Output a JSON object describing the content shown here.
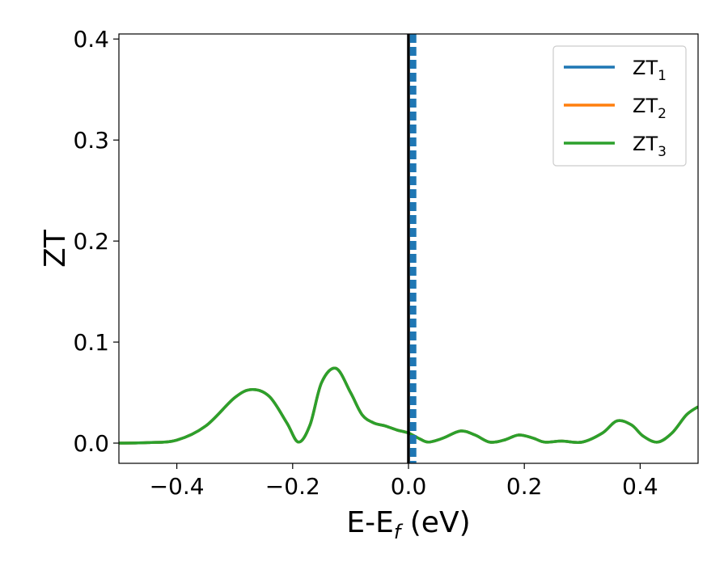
{
  "chart_data": {
    "type": "line",
    "xlabel": "E-E",
    "xlabel_sub": "f",
    "xlabel_unit": " (eV)",
    "ylabel": "ZT",
    "xlim": [
      -0.5,
      0.5
    ],
    "ylim": [
      -0.02,
      0.405
    ],
    "x_ticks": [
      -0.4,
      -0.2,
      0.0,
      0.2,
      0.4
    ],
    "x_tick_labels": [
      "−0.4",
      "−0.2",
      "0.0",
      "0.2",
      "0.4"
    ],
    "y_ticks": [
      0.0,
      0.1,
      0.2,
      0.3,
      0.4
    ],
    "y_tick_labels": [
      "0.0",
      "0.1",
      "0.2",
      "0.3",
      "0.4"
    ],
    "grid": false,
    "legend_position": "top-right",
    "series": [
      {
        "name": "ZT",
        "name_sub": "1",
        "color": "#1f77b4",
        "x": [
          -0.5,
          -0.45,
          -0.4,
          -0.35,
          -0.3,
          -0.27,
          -0.24,
          -0.21,
          -0.19,
          -0.17,
          -0.15,
          -0.125,
          -0.1,
          -0.08,
          -0.06,
          -0.04,
          -0.02,
          0.0,
          0.02,
          0.035,
          0.06,
          0.09,
          0.115,
          0.14,
          0.165,
          0.19,
          0.215,
          0.235,
          0.265,
          0.3,
          0.335,
          0.36,
          0.385,
          0.405,
          0.43,
          0.455,
          0.48,
          0.5
        ],
        "y": [
          0.0,
          0.0005,
          0.003,
          0.017,
          0.045,
          0.053,
          0.046,
          0.02,
          0.001,
          0.018,
          0.06,
          0.074,
          0.05,
          0.028,
          0.02,
          0.017,
          0.013,
          0.01,
          0.004,
          0.001,
          0.005,
          0.012,
          0.008,
          0.001,
          0.003,
          0.008,
          0.005,
          0.001,
          0.002,
          0.001,
          0.01,
          0.022,
          0.018,
          0.007,
          0.001,
          0.01,
          0.028,
          0.036
        ]
      },
      {
        "name": "ZT",
        "name_sub": "2",
        "color": "#ff7f0e",
        "x": [
          -0.5,
          -0.45,
          -0.4,
          -0.35,
          -0.3,
          -0.27,
          -0.24,
          -0.21,
          -0.19,
          -0.17,
          -0.15,
          -0.125,
          -0.1,
          -0.08,
          -0.06,
          -0.04,
          -0.02,
          0.0,
          0.02,
          0.035,
          0.06,
          0.09,
          0.115,
          0.14,
          0.165,
          0.19,
          0.215,
          0.235,
          0.265,
          0.3,
          0.335,
          0.36,
          0.385,
          0.405,
          0.43,
          0.455,
          0.48,
          0.5
        ],
        "y": [
          0.0,
          0.0005,
          0.003,
          0.017,
          0.045,
          0.053,
          0.046,
          0.02,
          0.001,
          0.018,
          0.06,
          0.074,
          0.05,
          0.028,
          0.02,
          0.017,
          0.013,
          0.01,
          0.004,
          0.001,
          0.005,
          0.012,
          0.008,
          0.001,
          0.003,
          0.008,
          0.005,
          0.001,
          0.002,
          0.001,
          0.01,
          0.022,
          0.018,
          0.007,
          0.001,
          0.01,
          0.028,
          0.036
        ]
      },
      {
        "name": "ZT",
        "name_sub": "3",
        "color": "#2ca02c",
        "x": [
          -0.5,
          -0.45,
          -0.4,
          -0.35,
          -0.3,
          -0.27,
          -0.24,
          -0.21,
          -0.19,
          -0.17,
          -0.15,
          -0.125,
          -0.1,
          -0.08,
          -0.06,
          -0.04,
          -0.02,
          0.0,
          0.02,
          0.035,
          0.06,
          0.09,
          0.115,
          0.14,
          0.165,
          0.19,
          0.215,
          0.235,
          0.265,
          0.3,
          0.335,
          0.36,
          0.385,
          0.405,
          0.43,
          0.455,
          0.48,
          0.5
        ],
        "y": [
          0.0,
          0.0005,
          0.003,
          0.017,
          0.045,
          0.053,
          0.046,
          0.02,
          0.001,
          0.018,
          0.06,
          0.074,
          0.05,
          0.028,
          0.02,
          0.017,
          0.013,
          0.01,
          0.004,
          0.001,
          0.005,
          0.012,
          0.008,
          0.001,
          0.003,
          0.008,
          0.005,
          0.001,
          0.002,
          0.001,
          0.01,
          0.022,
          0.018,
          0.007,
          0.001,
          0.01,
          0.028,
          0.036
        ]
      }
    ],
    "vertical_lines": [
      {
        "x": 0.0,
        "color": "#000000",
        "style": "solid"
      },
      {
        "x": 0.008,
        "color": "#1f77b4",
        "style": "dashed"
      }
    ]
  }
}
